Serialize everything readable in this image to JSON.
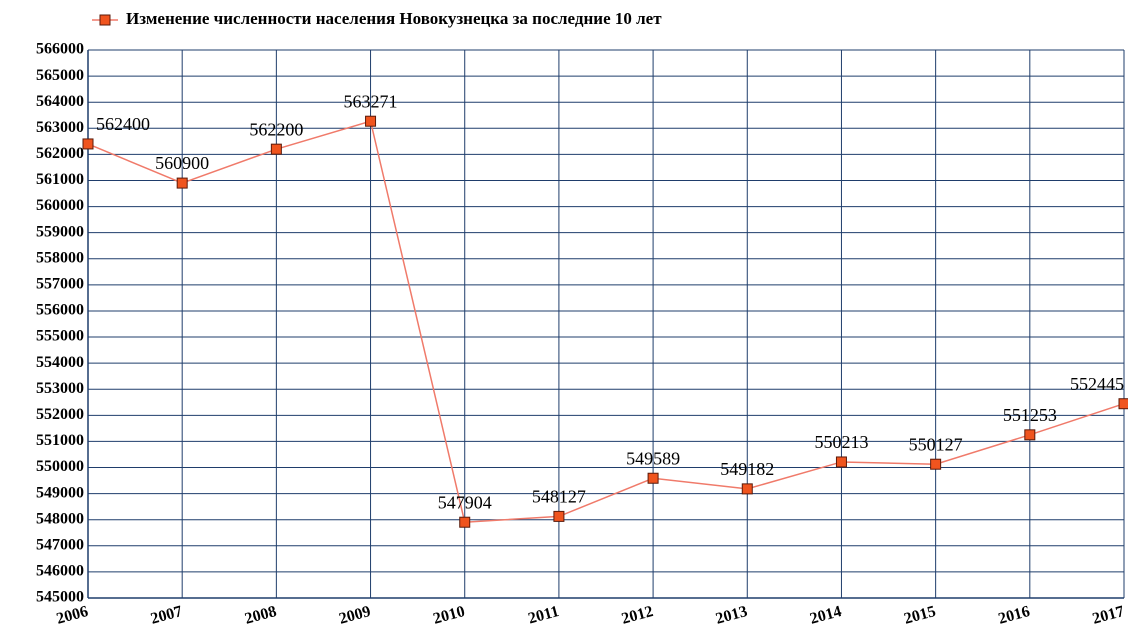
{
  "chart_data": {
    "type": "line",
    "categories": [
      "2006",
      "2007",
      "2008",
      "2009",
      "2010",
      "2011",
      "2012",
      "2013",
      "2014",
      "2015",
      "2016",
      "2017"
    ],
    "series": [
      {
        "name": "Изменение численности населения Новокузнецка за последние 10 лет",
        "color": "#f07a6a",
        "marker_color": "#f0541e",
        "values": [
          562400,
          560900,
          562200,
          563271,
          547904,
          548127,
          549589,
          549182,
          550213,
          550127,
          551253,
          552445
        ]
      }
    ],
    "ylim": [
      545000,
      566000
    ],
    "yticks": [
      545000,
      546000,
      547000,
      548000,
      549000,
      550000,
      551000,
      552000,
      553000,
      554000,
      555000,
      556000,
      557000,
      558000,
      559000,
      560000,
      561000,
      562000,
      563000,
      564000,
      565000,
      566000
    ],
    "grid": true,
    "legend": "top"
  }
}
